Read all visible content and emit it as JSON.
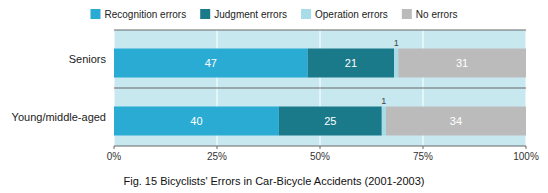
{
  "chart_data": {
    "type": "bar",
    "orientation": "horizontal",
    "stacked": true,
    "title": "Fig. 15  Bicyclists' Errors in Car-Bicycle Accidents  (2001-2003)",
    "categories": [
      "Seniors",
      "Young/middle-aged"
    ],
    "series": [
      {
        "name": "Recognition errors",
        "color": "#29ABD4",
        "values": [
          47,
          40
        ]
      },
      {
        "name": "Judgment errors",
        "color": "#1A7A8A",
        "values": [
          21,
          25
        ]
      },
      {
        "name": "Operation errors",
        "color": "#A8DCE8",
        "values": [
          1,
          1
        ]
      },
      {
        "name": "No errors",
        "color": "#BBBBBB",
        "values": [
          31,
          34
        ]
      }
    ],
    "xlim": [
      0,
      100
    ],
    "xticks": [
      {
        "value": 0,
        "label": "0%"
      },
      {
        "value": 25,
        "label": "25%"
      },
      {
        "value": 50,
        "label": "50%"
      },
      {
        "value": 75,
        "label": "75%"
      },
      {
        "value": 100,
        "label": "100%"
      }
    ],
    "grid": true,
    "legend": "top",
    "data_labels": true
  }
}
